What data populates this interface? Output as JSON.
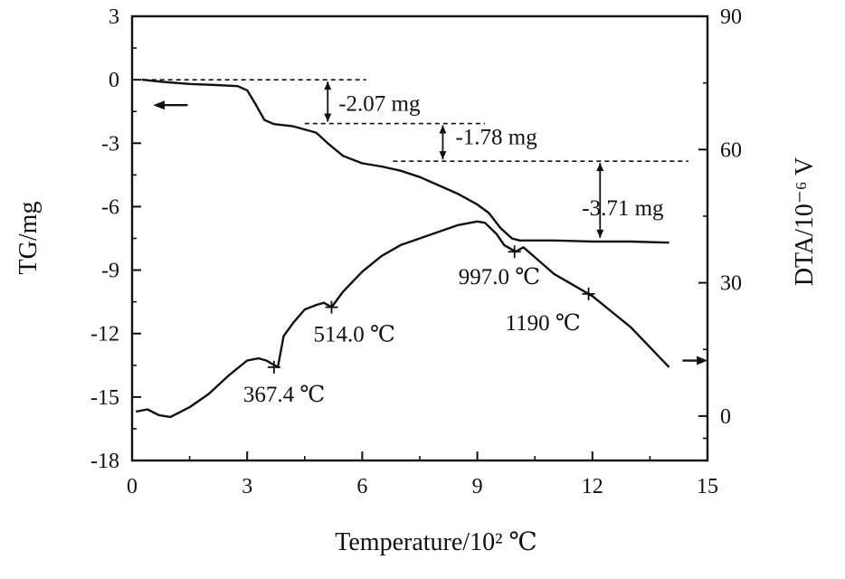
{
  "chart_data": {
    "type": "line",
    "xlabel": "Temperature/10² ℃",
    "ylabel_left": "TG/mg",
    "ylabel_right": "DTA/10⁻⁶ V",
    "x_range": [
      0,
      15
    ],
    "y_left_range": [
      -18,
      3
    ],
    "y_right_range": [
      -10,
      90
    ],
    "x_ticks": [
      0,
      3,
      6,
      9,
      12,
      15
    ],
    "y_left_ticks": [
      -18,
      -15,
      -12,
      -9,
      -6,
      -3,
      0,
      3
    ],
    "y_right_ticks": [
      0,
      30,
      60,
      90
    ],
    "x_tick_labels": [
      "0",
      "3",
      "6",
      "9",
      "12",
      "15"
    ],
    "y_left_tick_labels": [
      "-18",
      "-15",
      "-12",
      "-9",
      "-6",
      "-3",
      "0",
      "3"
    ],
    "y_right_tick_labels": [
      "0",
      "30",
      "60",
      "90"
    ],
    "series": [
      {
        "axis": "left",
        "x": [
          0.25,
          0.8,
          1.5,
          2.2,
          2.75,
          3.0,
          3.2,
          3.45,
          3.7,
          4.2,
          4.8,
          5.1,
          5.5,
          6.0,
          6.5,
          7.0,
          7.5,
          8.0,
          8.5,
          9.0,
          9.3,
          9.6,
          9.9,
          10.1,
          10.5,
          11.0,
          12.0,
          13.0,
          14.0
        ],
        "y": [
          0.0,
          -0.1,
          -0.2,
          -0.25,
          -0.3,
          -0.5,
          -1.1,
          -1.9,
          -2.1,
          -2.2,
          -2.5,
          -3.0,
          -3.6,
          -3.95,
          -4.1,
          -4.3,
          -4.6,
          -5.0,
          -5.4,
          -5.9,
          -6.3,
          -7.0,
          -7.5,
          -7.6,
          -7.6,
          -7.6,
          -7.65,
          -7.65,
          -7.7
        ]
      },
      {
        "axis": "right",
        "x": [
          0.1,
          0.4,
          0.7,
          1.0,
          1.5,
          2.0,
          2.5,
          3.0,
          3.3,
          3.5,
          3.7,
          3.8,
          3.95,
          4.2,
          4.5,
          4.8,
          5.0,
          5.2,
          5.5,
          6.0,
          6.5,
          7.0,
          7.5,
          8.0,
          8.5,
          9.0,
          9.2,
          9.5,
          9.7,
          10.0,
          10.2,
          10.6,
          11.0,
          11.5,
          12.0,
          12.5,
          13.0,
          13.5,
          14.0
        ],
        "y": [
          1.0,
          1.5,
          0.2,
          -0.2,
          2.0,
          5.0,
          9.0,
          12.5,
          13.0,
          12.5,
          11.5,
          11.0,
          18.0,
          21.0,
          24.0,
          25.0,
          25.5,
          24.5,
          28.0,
          32.5,
          36.0,
          38.5,
          40.0,
          41.5,
          43.0,
          43.8,
          43.5,
          41.0,
          38.5,
          37.0,
          38.0,
          35.0,
          32.0,
          29.5,
          27.0,
          23.5,
          20.0,
          15.5,
          11.0
        ]
      }
    ],
    "arrows": [
      {
        "series_axis": "left",
        "direction": "left"
      },
      {
        "series_axis": "right",
        "direction": "right"
      }
    ],
    "markers": [
      {
        "x": 3.7,
        "y_right": 11.0,
        "label": "367.4 ℃"
      },
      {
        "x": 5.2,
        "y_right": 24.5,
        "label": "514.0 ℃"
      },
      {
        "x": 9.97,
        "y_right": 37.0,
        "label": "997.0 ℃"
      },
      {
        "x": 11.9,
        "y_right": 27.5,
        "label": "1190 ℃"
      }
    ],
    "mass_losses": [
      {
        "label": "-2.07 mg",
        "from": 0.0,
        "to": -2.07,
        "x": 5.1
      },
      {
        "label": "-1.78 mg",
        "from": -2.07,
        "to": -3.85,
        "x": 8.1
      },
      {
        "label": "-3.71 mg",
        "from": -3.85,
        "to": -7.56,
        "x": 12.2
      }
    ]
  }
}
